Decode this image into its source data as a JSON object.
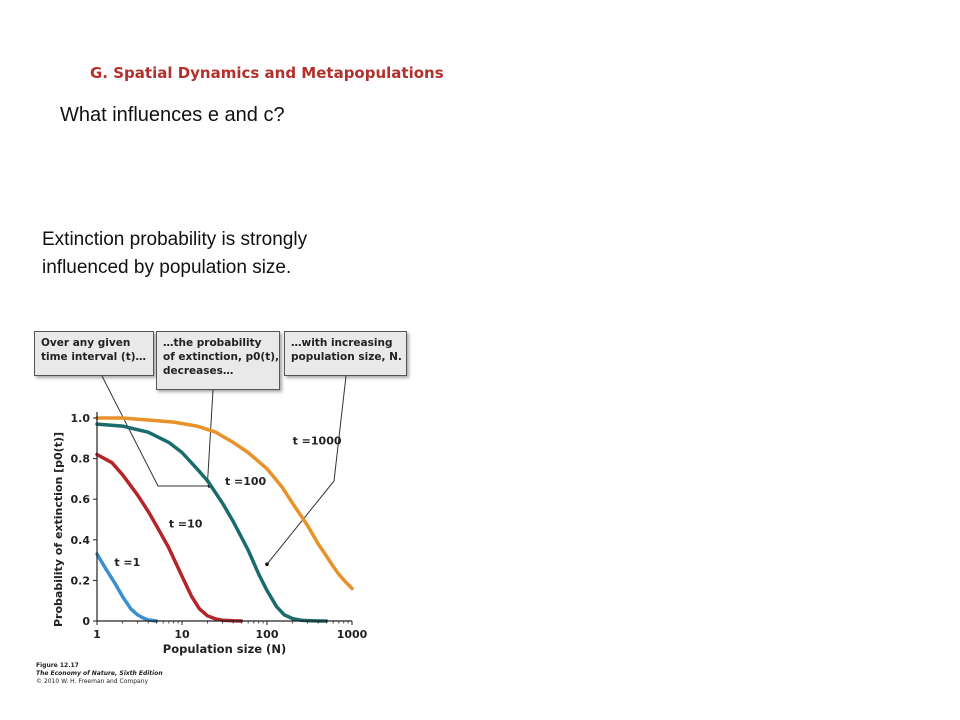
{
  "slide": {
    "title": "G. Spatial Dynamics and Metapopulations",
    "question": "What influences e and c?",
    "statement_line1": "Extinction probability is strongly",
    "statement_line2": "influenced by population size."
  },
  "callouts": [
    {
      "line1": "Over any given",
      "line2": "time interval (t)…"
    },
    {
      "line1": "…the probability",
      "line2": "of extinction, p0(t),",
      "line3": "decreases…"
    },
    {
      "line1": "…with increasing",
      "line2": "population size, N."
    }
  ],
  "caption": {
    "figure": "Figure 12.17",
    "book": "The Economy of Nature, Sixth Edition",
    "copyright": "© 2010 W. H. Freeman and Company"
  },
  "chart_data": {
    "type": "line",
    "xlabel": "Population size (N)",
    "ylabel": "Probability of extinction [p0(t)]",
    "xscale": "log",
    "xlim": [
      1,
      1000
    ],
    "ylim": [
      0,
      1.0
    ],
    "xticks": [
      "1",
      "10",
      "100",
      "1000"
    ],
    "yticks": [
      "0",
      "0.2",
      "0.4",
      "0.6",
      "0.8",
      "1.0"
    ],
    "grid": false,
    "series": [
      {
        "name": "t =1",
        "color": "#3b8fcf",
        "x": [
          1,
          1.3,
          1.6,
          2,
          2.5,
          3,
          3.5,
          4,
          5
        ],
        "y": [
          0.33,
          0.25,
          0.19,
          0.12,
          0.06,
          0.03,
          0.015,
          0.005,
          0.0
        ]
      },
      {
        "name": "t =10",
        "color": "#b32529",
        "x": [
          1,
          1.5,
          2,
          3,
          4,
          5,
          7,
          10,
          13,
          16,
          20,
          25,
          30,
          40,
          50
        ],
        "y": [
          0.82,
          0.78,
          0.72,
          0.62,
          0.54,
          0.47,
          0.36,
          0.22,
          0.12,
          0.06,
          0.025,
          0.01,
          0.004,
          0.001,
          0.0
        ]
      },
      {
        "name": "t =100",
        "color": "#1a6b6e",
        "x": [
          1,
          2,
          4,
          7,
          10,
          15,
          20,
          30,
          40,
          60,
          80,
          100,
          130,
          160,
          200,
          250,
          300,
          400,
          500
        ],
        "y": [
          0.97,
          0.96,
          0.93,
          0.88,
          0.83,
          0.75,
          0.69,
          0.58,
          0.49,
          0.35,
          0.23,
          0.15,
          0.07,
          0.03,
          0.012,
          0.004,
          0.002,
          0.0,
          0.0
        ]
      },
      {
        "name": "t =1000",
        "color": "#e8922a",
        "x": [
          1,
          2,
          4,
          8,
          15,
          25,
          40,
          60,
          100,
          150,
          200,
          300,
          400,
          500,
          600,
          700,
          850,
          1000
        ],
        "y": [
          1.0,
          1.0,
          0.99,
          0.98,
          0.96,
          0.93,
          0.88,
          0.83,
          0.75,
          0.66,
          0.58,
          0.47,
          0.38,
          0.32,
          0.27,
          0.23,
          0.19,
          0.16
        ]
      }
    ],
    "series_labels": [
      {
        "text": "t =1",
        "x": 1.6,
        "y": 0.27
      },
      {
        "text": "t =10",
        "x": 7,
        "y": 0.46
      },
      {
        "text": "t =100",
        "x": 32,
        "y": 0.67
      },
      {
        "text": "t =1000",
        "x": 200,
        "y": 0.87
      }
    ]
  }
}
